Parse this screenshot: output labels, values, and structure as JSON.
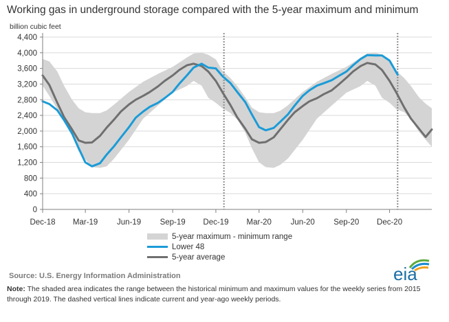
{
  "title": "Working gas in underground  storage compared with the 5-year maximum and minimum",
  "y_unit": "billion cubic feet",
  "legend": {
    "band": "5-year maximum - minimum range",
    "lower48": "Lower 48",
    "average": "5-year average"
  },
  "source": "Source:  U.S. Energy Information Administration",
  "note_label": "Note:",
  "note_text": " The shaded area indicates the range between the historical minimum and maximum values for the weekly series from 2015 through 2019. The dashed vertical lines indicate current and year-ago weekly periods.",
  "logo_text": "eia",
  "colors": {
    "band": "#d4d4d4",
    "lower48": "#1a9bd7",
    "average": "#6f6f6f",
    "axis": "#7f7f7f",
    "grid": "#d9d9d9",
    "marker": "#8c8c8c",
    "logo_text": "#1b6fa5",
    "logo_arc_green": "#5aaa3c",
    "logo_arc_blue": "#1b8dd0",
    "logo_arc_orange": "#f0a01e"
  },
  "chart_data": {
    "type": "line",
    "xlabel": "",
    "ylabel": "billion cubic feet",
    "ylim": [
      0,
      4400
    ],
    "yticks": [
      0,
      400,
      800,
      1200,
      1600,
      2000,
      2400,
      2800,
      3200,
      3600,
      4000,
      4400
    ],
    "xlim": [
      "2018-12-01",
      "2021-02-28"
    ],
    "xticks": [
      {
        "date": "2018-12-01",
        "label": "Dec-18"
      },
      {
        "date": "2019-03-01",
        "label": "Mar-19"
      },
      {
        "date": "2019-06-01",
        "label": "Jun-19"
      },
      {
        "date": "2019-09-01",
        "label": "Sep-19"
      },
      {
        "date": "2019-12-01",
        "label": "Dec-19"
      },
      {
        "date": "2020-03-01",
        "label": "Mar-20"
      },
      {
        "date": "2020-06-01",
        "label": "Jun-20"
      },
      {
        "date": "2020-09-01",
        "label": "Sep-20"
      },
      {
        "date": "2020-12-01",
        "label": "Dec-20"
      }
    ],
    "grid": "horizontal",
    "legend_position": "bottom-center",
    "vertical_markers": [
      "2019-12-18",
      "2020-12-18"
    ],
    "series": [
      {
        "name": "5-year maximum - minimum range",
        "kind": "band",
        "x": [
          "2018-12-01",
          "2018-12-15",
          "2019-01-01",
          "2019-01-15",
          "2019-02-01",
          "2019-02-15",
          "2019-03-01",
          "2019-03-15",
          "2019-04-01",
          "2019-04-15",
          "2019-05-01",
          "2019-06-01",
          "2019-07-01",
          "2019-08-01",
          "2019-09-01",
          "2019-10-01",
          "2019-10-15",
          "2019-11-01",
          "2019-11-15",
          "2019-12-01",
          "2019-12-15",
          "2020-01-01",
          "2020-01-15",
          "2020-02-01",
          "2020-02-15",
          "2020-03-01",
          "2020-03-15",
          "2020-04-01",
          "2020-04-15",
          "2020-05-01",
          "2020-06-01",
          "2020-07-01",
          "2020-08-01",
          "2020-09-01",
          "2020-10-01",
          "2020-10-15",
          "2020-11-01",
          "2020-11-15",
          "2020-12-01",
          "2020-12-15",
          "2021-01-01",
          "2021-01-15",
          "2021-02-01",
          "2021-02-15",
          "2021-02-28"
        ],
        "max": [
          3840,
          3780,
          3520,
          3160,
          2800,
          2580,
          2480,
          2460,
          2460,
          2530,
          2680,
          3000,
          3260,
          3460,
          3640,
          3880,
          3980,
          4000,
          3950,
          3830,
          3540,
          3350,
          3150,
          2860,
          2600,
          2480,
          2460,
          2460,
          2520,
          2660,
          3000,
          3260,
          3460,
          3640,
          3880,
          3980,
          4000,
          3950,
          3830,
          3540,
          3350,
          3150,
          2860,
          2700,
          2580
        ],
        "min": [
          3160,
          2900,
          2560,
          2240,
          1880,
          1480,
          1280,
          1080,
          1060,
          1100,
          1300,
          1780,
          2320,
          2650,
          2980,
          3150,
          3280,
          3160,
          2850,
          2720,
          2580,
          2460,
          2300,
          1960,
          1560,
          1200,
          1080,
          1060,
          1140,
          1300,
          1780,
          2320,
          2650,
          2980,
          3150,
          3280,
          3160,
          2850,
          2720,
          2560,
          2480,
          2300,
          1980,
          1780,
          1600
        ]
      },
      {
        "name": "Lower 48",
        "kind": "line",
        "x": [
          "2018-12-01",
          "2018-12-15",
          "2019-01-01",
          "2019-01-15",
          "2019-02-01",
          "2019-02-15",
          "2019-03-01",
          "2019-03-15",
          "2019-04-01",
          "2019-04-15",
          "2019-05-01",
          "2019-05-15",
          "2019-06-01",
          "2019-06-15",
          "2019-07-01",
          "2019-07-15",
          "2019-08-01",
          "2019-08-15",
          "2019-09-01",
          "2019-09-15",
          "2019-10-01",
          "2019-10-15",
          "2019-11-01",
          "2019-11-15",
          "2019-12-01",
          "2019-12-15",
          "2020-01-01",
          "2020-01-15",
          "2020-02-01",
          "2020-02-15",
          "2020-03-01",
          "2020-03-15",
          "2020-04-01",
          "2020-04-15",
          "2020-05-01",
          "2020-05-15",
          "2020-06-01",
          "2020-06-15",
          "2020-07-01",
          "2020-07-15",
          "2020-08-01",
          "2020-08-15",
          "2020-09-01",
          "2020-09-15",
          "2020-10-01",
          "2020-10-15",
          "2020-11-01",
          "2020-11-15",
          "2020-12-01",
          "2020-12-18"
        ],
        "values": [
          2760,
          2690,
          2530,
          2280,
          1940,
          1560,
          1200,
          1100,
          1180,
          1400,
          1620,
          1840,
          2100,
          2340,
          2500,
          2620,
          2720,
          2840,
          3000,
          3210,
          3420,
          3620,
          3720,
          3620,
          3600,
          3400,
          3220,
          3000,
          2740,
          2420,
          2100,
          2020,
          2080,
          2240,
          2430,
          2650,
          2900,
          3040,
          3160,
          3220,
          3300,
          3400,
          3520,
          3680,
          3840,
          3940,
          3930,
          3930,
          3800,
          3440
        ]
      },
      {
        "name": "5-year average",
        "kind": "line",
        "x": [
          "2018-12-01",
          "2018-12-15",
          "2019-01-01",
          "2019-01-15",
          "2019-02-01",
          "2019-02-15",
          "2019-03-01",
          "2019-03-15",
          "2019-04-01",
          "2019-04-15",
          "2019-05-01",
          "2019-05-15",
          "2019-06-01",
          "2019-06-15",
          "2019-07-01",
          "2019-07-15",
          "2019-08-01",
          "2019-08-15",
          "2019-09-01",
          "2019-09-15",
          "2019-10-01",
          "2019-10-15",
          "2019-11-01",
          "2019-11-15",
          "2019-12-01",
          "2019-12-15",
          "2020-01-01",
          "2020-01-15",
          "2020-02-01",
          "2020-02-15",
          "2020-03-01",
          "2020-03-15",
          "2020-04-01",
          "2020-04-15",
          "2020-05-01",
          "2020-05-15",
          "2020-06-01",
          "2020-06-15",
          "2020-07-01",
          "2020-07-15",
          "2020-08-01",
          "2020-08-15",
          "2020-09-01",
          "2020-09-15",
          "2020-10-01",
          "2020-10-15",
          "2020-11-01",
          "2020-11-15",
          "2020-12-01",
          "2020-12-15",
          "2021-01-01",
          "2021-01-15",
          "2021-02-01",
          "2021-02-15",
          "2021-02-28"
        ],
        "values": [
          3420,
          3180,
          2720,
          2360,
          2040,
          1760,
          1700,
          1710,
          1880,
          2090,
          2300,
          2500,
          2680,
          2800,
          2900,
          3000,
          3140,
          3280,
          3420,
          3560,
          3680,
          3720,
          3660,
          3520,
          3280,
          2990,
          2660,
          2350,
          2060,
          1790,
          1700,
          1720,
          1840,
          2050,
          2290,
          2480,
          2640,
          2760,
          2840,
          2940,
          3040,
          3180,
          3360,
          3520,
          3660,
          3740,
          3700,
          3560,
          3280,
          2990,
          2600,
          2320,
          2060,
          1850,
          2040
        ]
      }
    ]
  }
}
